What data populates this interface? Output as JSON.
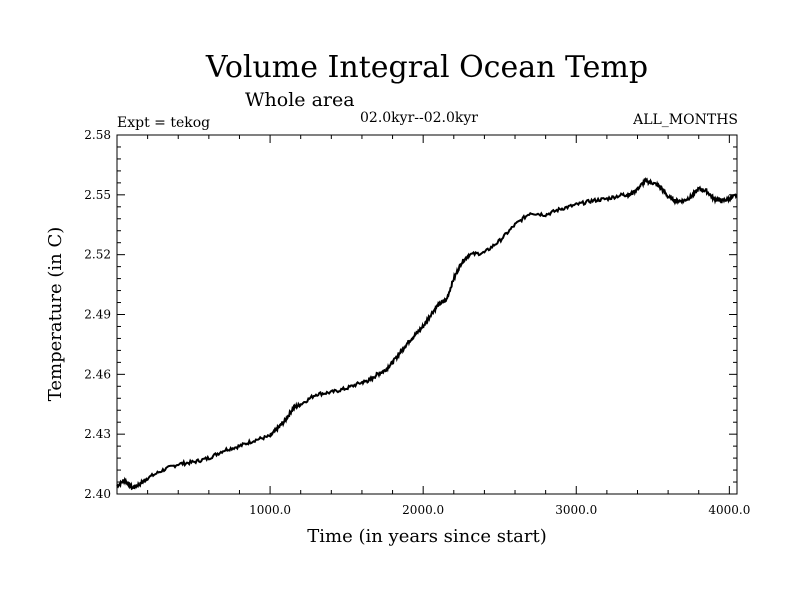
{
  "chart_data": {
    "type": "line",
    "title": "Volume Integral Ocean Temp",
    "subtitle": "Whole area",
    "period": "02.0kyr--02.0kyr",
    "expt": "Expt = tekog",
    "months": "ALL_MONTHS",
    "xlabel": "Time (in years since start)",
    "ylabel": "Temperature (in C)",
    "xlim": [
      0,
      4050
    ],
    "ylim": [
      2.4,
      2.58
    ],
    "xticks": [
      1000,
      2000,
      3000,
      4000
    ],
    "xtick_labels": [
      "1000.0",
      "2000.0",
      "3000.0",
      "4000.0"
    ],
    "yticks": [
      2.4,
      2.43,
      2.46,
      2.49,
      2.52,
      2.55,
      2.58
    ],
    "ytick_labels": [
      "2.40",
      "2.43",
      "2.46",
      "2.49",
      "2.52",
      "2.55",
      "2.58"
    ],
    "series": [
      {
        "name": "Volume integral ocean temperature",
        "x": [
          0,
          50,
          100,
          150,
          200,
          300,
          400,
          500,
          600,
          700,
          800,
          900,
          1000,
          1050,
          1100,
          1150,
          1200,
          1300,
          1400,
          1500,
          1600,
          1650,
          1700,
          1750,
          1800,
          1850,
          1900,
          1950,
          2000,
          2050,
          2100,
          2150,
          2200,
          2250,
          2300,
          2400,
          2500,
          2600,
          2700,
          2800,
          2900,
          3000,
          3100,
          3200,
          3300,
          3350,
          3400,
          3450,
          3500,
          3550,
          3600,
          3650,
          3700,
          3750,
          3800,
          3850,
          3900,
          3950,
          4000,
          4050
        ],
        "values": [
          2.404,
          2.407,
          2.403,
          2.405,
          2.408,
          2.412,
          2.415,
          2.416,
          2.418,
          2.422,
          2.424,
          2.427,
          2.429,
          2.433,
          2.437,
          2.443,
          2.445,
          2.45,
          2.451,
          2.453,
          2.456,
          2.457,
          2.46,
          2.462,
          2.466,
          2.471,
          2.476,
          2.48,
          2.484,
          2.49,
          2.495,
          2.497,
          2.508,
          2.516,
          2.52,
          2.521,
          2.527,
          2.535,
          2.541,
          2.54,
          2.543,
          2.545,
          2.547,
          2.548,
          2.55,
          2.55,
          2.553,
          2.557,
          2.556,
          2.554,
          2.549,
          2.547,
          2.547,
          2.549,
          2.553,
          2.552,
          2.548,
          2.547,
          2.548,
          2.55
        ]
      }
    ]
  }
}
